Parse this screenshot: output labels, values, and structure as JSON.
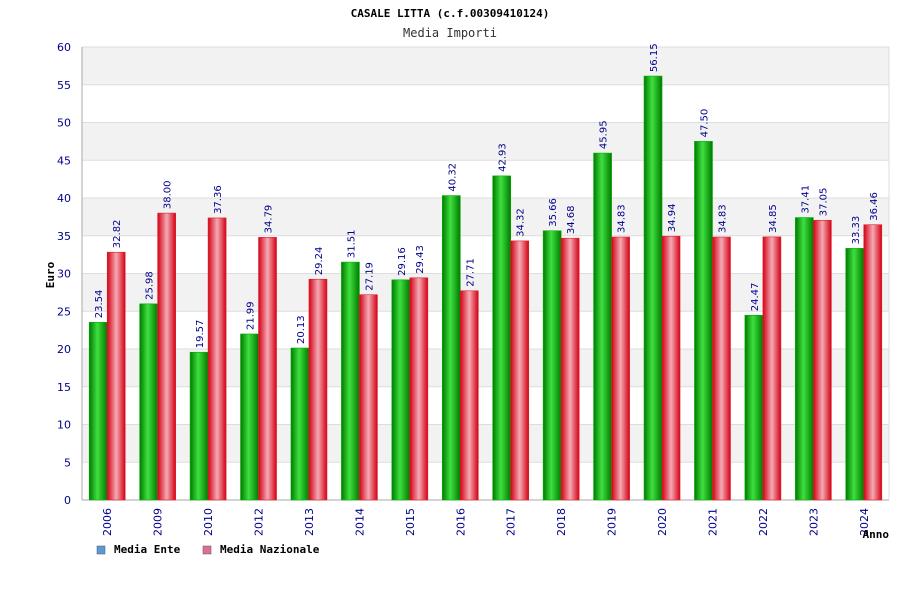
{
  "chart_data": {
    "type": "bar",
    "title": "CASALE LITTA (c.f.00309410124)",
    "subtitle": "Media Importi",
    "xlabel": "Anno",
    "ylabel": "Euro",
    "ylim": [
      0,
      60
    ],
    "yticks": [
      0,
      5,
      10,
      15,
      20,
      25,
      30,
      35,
      40,
      45,
      50,
      55,
      60
    ],
    "grid": true,
    "legend_position": "bottom-left",
    "categories": [
      "2006",
      "2009",
      "2010",
      "2012",
      "2013",
      "2014",
      "2015",
      "2016",
      "2017",
      "2018",
      "2019",
      "2020",
      "2021",
      "2022",
      "2023",
      "2024"
    ],
    "series": [
      {
        "name": "Media Ente",
        "color": "#00b000",
        "legend_color": "#5b9bd5",
        "values": [
          23.54,
          25.98,
          19.57,
          21.99,
          20.13,
          31.51,
          29.16,
          40.32,
          42.93,
          35.66,
          45.95,
          56.15,
          47.5,
          24.47,
          37.41,
          33.33
        ],
        "labels": [
          "23.54",
          "25.98",
          "19.57",
          "21.99",
          "20.13",
          "31.51",
          "29.16",
          "40.32",
          "42.93",
          "35.66",
          "45.95",
          "56.15",
          "47.50",
          "24.47",
          "37.41",
          "33.33"
        ]
      },
      {
        "name": "Media Nazionale",
        "color": "#e0202a",
        "legend_color": "#e07090",
        "values": [
          32.82,
          38.0,
          37.36,
          34.79,
          29.24,
          27.19,
          29.43,
          27.71,
          34.32,
          34.68,
          34.83,
          34.94,
          34.83,
          34.85,
          37.05,
          36.46
        ],
        "labels": [
          "32.82",
          "38.00",
          "37.36",
          "34.79",
          "29.24",
          "27.19",
          "29.43",
          "27.71",
          "34.32",
          "34.68",
          "34.83",
          "34.94",
          "34.83",
          "34.85",
          "37.05",
          "36.46"
        ]
      }
    ]
  }
}
